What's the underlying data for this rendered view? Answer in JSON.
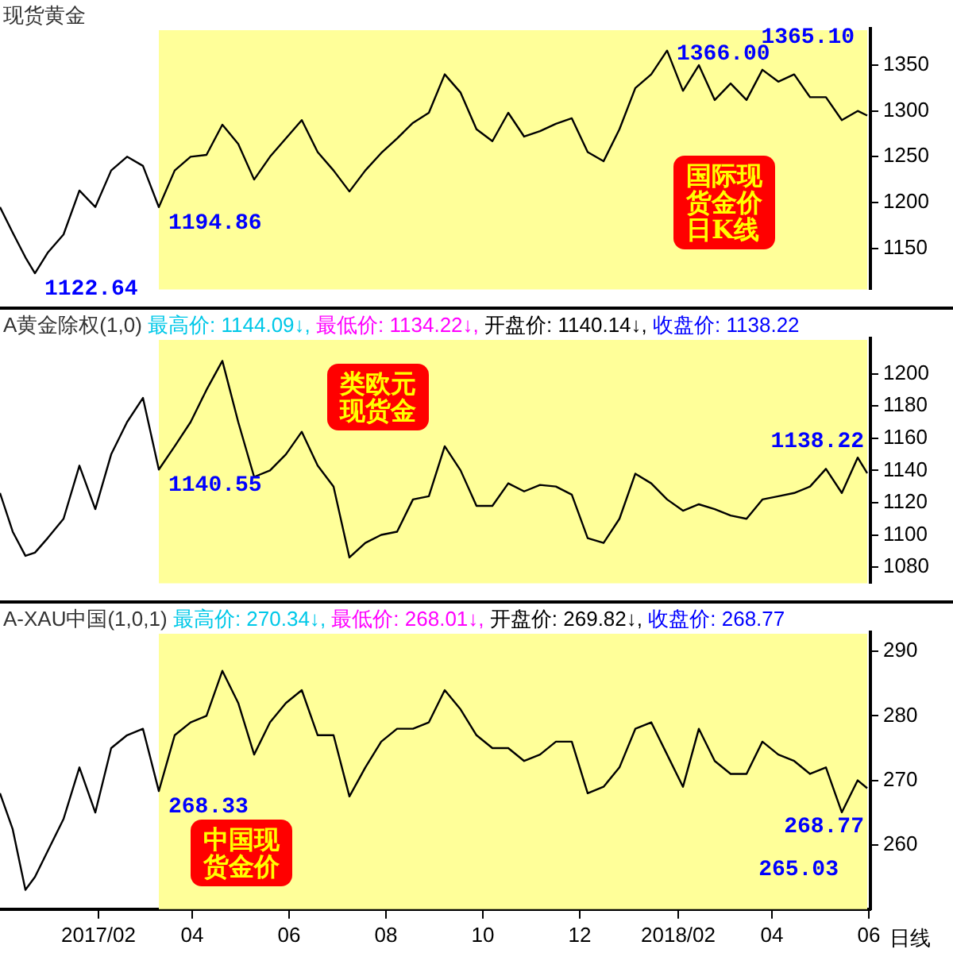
{
  "chart_data": [
    {
      "type": "line",
      "title": "现货黄金",
      "x": [
        "2016-12-01",
        "2016-12-09",
        "2016-12-17",
        "2016-12-23",
        "2016-12-31",
        "2017-01-10",
        "2017-01-20",
        "2017-01-30",
        "2017-02-09",
        "2017-02-19",
        "2017-03-01",
        "2017-03-11",
        "2017-03-21",
        "2017-03-31",
        "2017-04-10",
        "2017-04-20",
        "2017-04-30",
        "2017-05-10",
        "2017-05-20",
        "2017-05-30",
        "2017-06-09",
        "2017-06-19",
        "2017-06-29",
        "2017-07-09",
        "2017-07-19",
        "2017-07-29",
        "2017-08-08",
        "2017-08-18",
        "2017-08-28",
        "2017-09-07",
        "2017-09-17",
        "2017-09-27",
        "2017-10-07",
        "2017-10-17",
        "2017-10-27",
        "2017-11-06",
        "2017-11-16",
        "2017-11-26",
        "2017-12-06",
        "2017-12-16",
        "2017-12-26",
        "2018-01-05",
        "2018-01-15",
        "2018-01-25",
        "2018-02-04",
        "2018-02-14",
        "2018-02-24",
        "2018-03-06",
        "2018-03-16",
        "2018-03-26",
        "2018-04-05",
        "2018-04-15",
        "2018-04-25",
        "2018-05-05",
        "2018-05-15",
        "2018-05-25",
        "2018-05-31"
      ],
      "series": [
        {
          "color": "#000000",
          "values": [
            1195,
            1167,
            1140,
            1122.64,
            1145,
            1165,
            1213,
            1195,
            1235,
            1250,
            1240,
            1194.86,
            1235,
            1250,
            1252,
            1285,
            1264,
            1225,
            1250,
            1270,
            1290,
            1255,
            1235,
            1212,
            1235,
            1254,
            1270,
            1287,
            1298,
            1340,
            1320,
            1280,
            1267,
            1298,
            1272,
            1278,
            1286,
            1292,
            1255,
            1245,
            1280,
            1325,
            1340,
            1366,
            1322,
            1350,
            1312,
            1330,
            1312,
            1345,
            1332,
            1340,
            1315,
            1315,
            1290,
            1300,
            1295
          ]
        }
      ],
      "xlim": [
        "2016-12-01",
        "2018-06-02"
      ],
      "ylim": [
        1105,
        1390
      ],
      "yticks": [
        1150,
        1200,
        1250,
        1300,
        1350
      ],
      "tick_labels": "y",
      "grid": false,
      "legend": false,
      "marker": "none",
      "bands": [
        {
          "axis": "x",
          "from": "2017-03-11",
          "to": "2018-05-31",
          "color": "#ffff99"
        }
      ],
      "annotations": [
        {
          "text": "1122.64",
          "x": "2016-12-23",
          "y": 1122.64
        },
        {
          "text": "1366.00",
          "x": "2018-01-25",
          "y": 1366
        },
        {
          "text": "1194.86",
          "x": "2017-03-11",
          "y": 1194.86
        },
        "1365.10",
        "国际现货金价日K线"
      ]
    },
    {
      "type": "line",
      "title": "A黄金除权(1,0)",
      "subtitle": "最高价: 1144.09↓, 最低价: 1134.22↓, 开盘价: 1140.14↓, 收盘价: 1138.22",
      "x": [
        "2016-12-01",
        "2016-12-09",
        "2016-12-17",
        "2016-12-23",
        "2016-12-31",
        "2017-01-10",
        "2017-01-20",
        "2017-01-30",
        "2017-02-09",
        "2017-02-19",
        "2017-03-01",
        "2017-03-11",
        "2017-03-21",
        "2017-03-31",
        "2017-04-10",
        "2017-04-20",
        "2017-04-30",
        "2017-05-10",
        "2017-05-20",
        "2017-05-30",
        "2017-06-09",
        "2017-06-19",
        "2017-06-29",
        "2017-07-09",
        "2017-07-19",
        "2017-07-29",
        "2017-08-08",
        "2017-08-18",
        "2017-08-28",
        "2017-09-07",
        "2017-09-17",
        "2017-09-27",
        "2017-10-07",
        "2017-10-17",
        "2017-10-27",
        "2017-11-06",
        "2017-11-16",
        "2017-11-26",
        "2017-12-06",
        "2017-12-16",
        "2017-12-26",
        "2018-01-05",
        "2018-01-15",
        "2018-01-25",
        "2018-02-04",
        "2018-02-14",
        "2018-02-24",
        "2018-03-06",
        "2018-03-16",
        "2018-03-26",
        "2018-04-05",
        "2018-04-15",
        "2018-04-25",
        "2018-05-05",
        "2018-05-15",
        "2018-05-25",
        "2018-05-31"
      ],
      "series": [
        {
          "color": "#000000",
          "values": [
            1126,
            1102,
            1087,
            1089,
            1098,
            1110,
            1143,
            1116,
            1150,
            1170,
            1185,
            1140.55,
            1155,
            1170,
            1190,
            1208,
            1170,
            1136,
            1140,
            1150,
            1164,
            1143,
            1130,
            1086,
            1095,
            1100,
            1102,
            1122,
            1124,
            1155,
            1140,
            1118,
            1118,
            1132,
            1127,
            1131,
            1130,
            1125,
            1098,
            1095,
            1110,
            1138,
            1132,
            1122,
            1115,
            1119,
            1116,
            1112,
            1110,
            1122,
            1124,
            1126,
            1130,
            1141,
            1126,
            1148,
            1138.22
          ]
        }
      ],
      "xlim": [
        "2016-12-01",
        "2018-06-02"
      ],
      "ylim": [
        1070,
        1222
      ],
      "yticks": [
        1080,
        1100,
        1120,
        1140,
        1160,
        1180,
        1200
      ],
      "tick_labels": "y",
      "grid": false,
      "legend": false,
      "marker": "none",
      "bands": [
        {
          "axis": "x",
          "from": "2017-03-11",
          "to": "2018-05-31",
          "color": "#ffff99"
        }
      ],
      "annotations": [
        {
          "text": "1140.55",
          "x": "2017-03-11",
          "y": 1140.55
        },
        {
          "text": "1138.22",
          "x": "2018-05-31",
          "y": 1138.22
        },
        "类欧元现货金"
      ]
    },
    {
      "type": "line",
      "title": "A-XAU中国(1,0,1)",
      "subtitle": "最高价: 270.34↓, 最低价: 268.01↓, 开盘价: 269.82↓, 收盘价: 268.77",
      "x": [
        "2016-12-01",
        "2016-12-09",
        "2016-12-17",
        "2016-12-23",
        "2016-12-31",
        "2017-01-10",
        "2017-01-20",
        "2017-01-30",
        "2017-02-09",
        "2017-02-19",
        "2017-03-01",
        "2017-03-11",
        "2017-03-21",
        "2017-03-31",
        "2017-04-10",
        "2017-04-20",
        "2017-04-30",
        "2017-05-10",
        "2017-05-20",
        "2017-05-30",
        "2017-06-09",
        "2017-06-19",
        "2017-06-29",
        "2017-07-09",
        "2017-07-19",
        "2017-07-29",
        "2017-08-08",
        "2017-08-18",
        "2017-08-28",
        "2017-09-07",
        "2017-09-17",
        "2017-09-27",
        "2017-10-07",
        "2017-10-17",
        "2017-10-27",
        "2017-11-06",
        "2017-11-16",
        "2017-11-26",
        "2017-12-06",
        "2017-12-16",
        "2017-12-26",
        "2018-01-05",
        "2018-01-15",
        "2018-01-25",
        "2018-02-04",
        "2018-02-14",
        "2018-02-24",
        "2018-03-06",
        "2018-03-16",
        "2018-03-26",
        "2018-04-05",
        "2018-04-15",
        "2018-04-25",
        "2018-05-05",
        "2018-05-15",
        "2018-05-25",
        "2018-05-31"
      ],
      "series": [
        {
          "color": "#000000",
          "values": [
            268,
            262.4,
            253,
            255,
            259,
            264,
            272,
            265,
            275,
            277,
            278,
            268.33,
            277,
            279,
            280,
            287,
            282,
            274,
            279,
            282,
            284,
            277,
            277,
            267.5,
            272,
            276,
            278,
            278,
            279,
            284,
            281,
            277,
            275,
            275,
            273,
            274,
            276,
            276,
            268,
            269,
            272,
            278,
            279,
            274,
            269,
            278,
            273,
            271,
            271,
            276,
            274,
            273,
            271,
            272,
            265.03,
            270,
            268.77
          ]
        }
      ],
      "xlim": [
        "2016-12-01",
        "2018-06-02"
      ],
      "xticks": [
        {
          "value": "2017-02-01",
          "label": "2017/02"
        },
        {
          "value": "2017-04-01",
          "label": "04"
        },
        {
          "value": "2017-06-01",
          "label": "06"
        },
        {
          "value": "2017-08-01",
          "label": "08"
        },
        {
          "value": "2017-10-01",
          "label": "10"
        },
        {
          "value": "2017-12-01",
          "label": "12"
        },
        {
          "value": "2018-02-01",
          "label": "2018/02"
        },
        {
          "value": "2018-04-01",
          "label": "04"
        },
        {
          "value": "2018-06-01",
          "label": "06"
        }
      ],
      "ylim": [
        250,
        293
      ],
      "yticks": [
        260,
        270,
        280,
        290
      ],
      "grid": false,
      "legend": false,
      "marker": "none",
      "bands": [
        {
          "axis": "x",
          "from": "2017-03-11",
          "to": "2018-05-31",
          "color": "#ffff99"
        }
      ],
      "annotations": [
        {
          "text": "268.33",
          "x": "2017-03-11",
          "y": 268.33
        },
        {
          "text": "268.77",
          "x": "2018-05-31",
          "y": 268.77
        },
        {
          "text": "265.03",
          "x": "2018-05-15",
          "y": 265.03
        },
        "中国现货金价",
        "日线"
      ]
    }
  ]
}
